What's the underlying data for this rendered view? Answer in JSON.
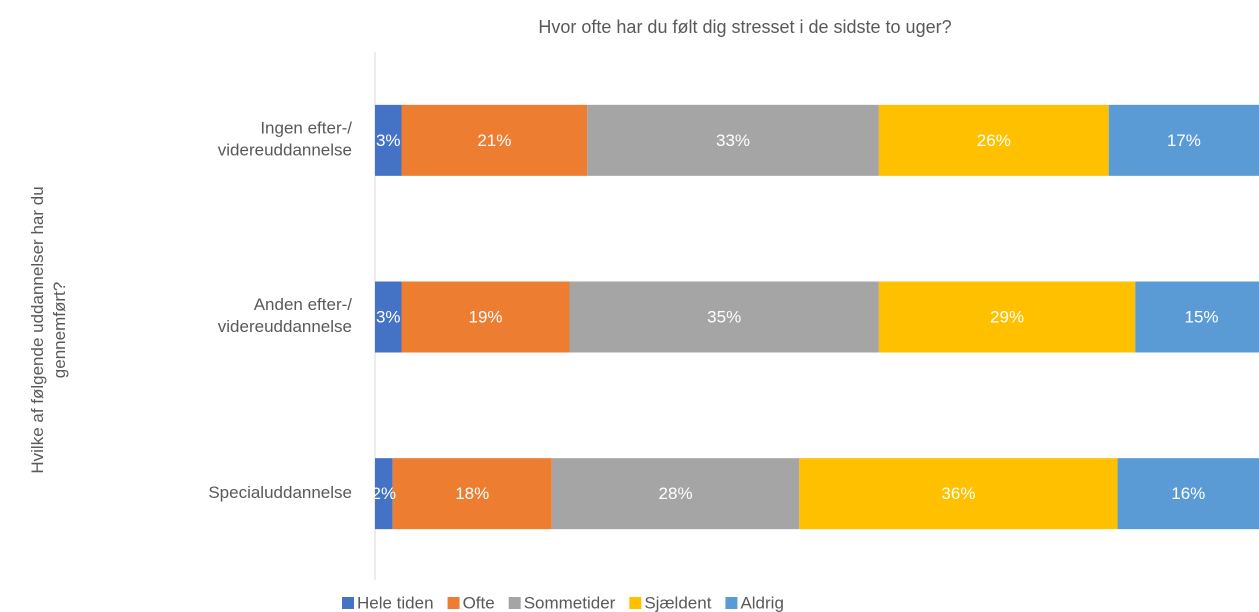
{
  "chart_data": {
    "type": "stacked-bar-horizontal",
    "title": "Hvor ofte har du følt dig stresset i de sidste to uger?",
    "y_label": "Hvilke af følgende uddannelser har du\ngennemført?",
    "categories": [
      "Ingen efter-/\nvidereuddannelse",
      "Anden efter-/\nvidereuddannelse",
      "Specialuddannelse"
    ],
    "xlim": [
      0,
      100
    ],
    "legend": "bottom",
    "series": [
      {
        "name": "Hele tiden",
        "color": "#4472c4",
        "values": [
          3,
          3,
          2
        ],
        "value_labels": [
          "3%",
          "3%",
          "2%"
        ]
      },
      {
        "name": "Ofte",
        "color": "#ed7d31",
        "values": [
          21,
          19,
          18
        ],
        "value_labels": [
          "21%",
          "19%",
          "18%"
        ]
      },
      {
        "name": "Sommetider",
        "color": "#a5a5a5",
        "values": [
          33,
          35,
          28
        ],
        "value_labels": [
          "33%",
          "35%",
          "28%"
        ]
      },
      {
        "name": "Sjældent",
        "color": "#ffc000",
        "values": [
          26,
          29,
          36
        ],
        "value_labels": [
          "26%",
          "29%",
          "36%"
        ]
      },
      {
        "name": "Aldrig",
        "color": "#5b9bd5",
        "values": [
          17,
          15,
          16
        ],
        "value_labels": [
          "17%",
          "15%",
          "16%"
        ]
      }
    ]
  }
}
